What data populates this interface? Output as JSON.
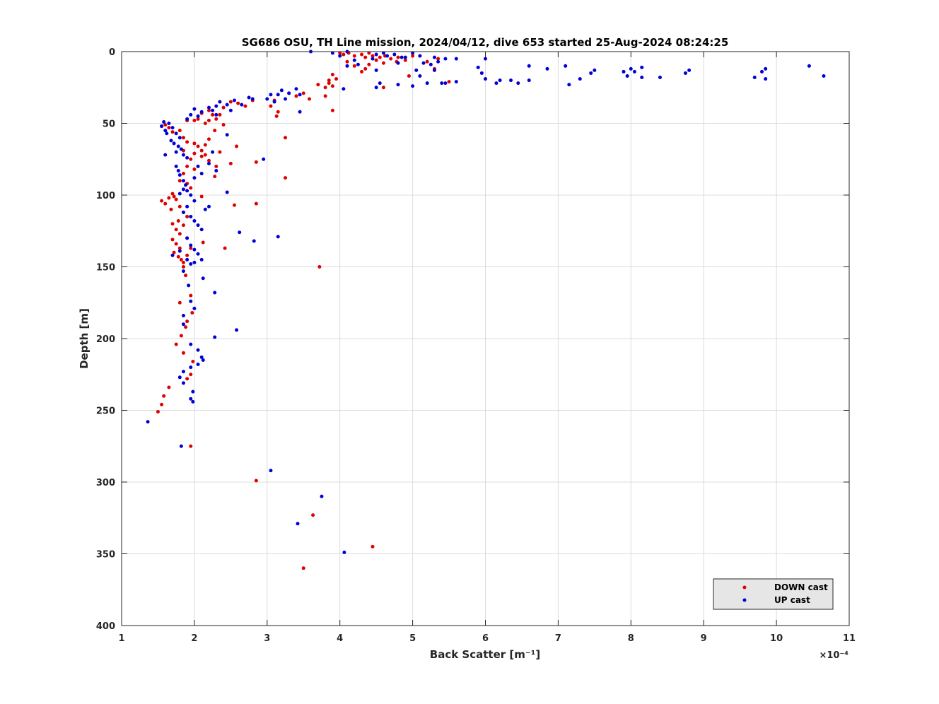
{
  "chart_data": {
    "type": "scatter",
    "title": "SG686 OSU, TH Line mission, 2024/04/12, dive 653 started 25-Aug-2024 08:24:25",
    "xlabel": "Back Scatter [m⁻¹]",
    "ylabel": "Depth [m]",
    "x_exponent_label": "×10⁻⁴",
    "x_multiplier": 0.0001,
    "xlim": [
      1,
      11
    ],
    "ylim": [
      0,
      400
    ],
    "y_reversed": true,
    "xticks": [
      1,
      2,
      3,
      4,
      5,
      6,
      7,
      8,
      9,
      10,
      11
    ],
    "yticks": [
      0,
      50,
      100,
      150,
      200,
      250,
      300,
      350,
      400
    ],
    "xtick_labels": [
      "1",
      "2",
      "3",
      "4",
      "5",
      "6",
      "7",
      "8",
      "9",
      "10",
      "11"
    ],
    "ytick_labels": [
      "0",
      "50",
      "100",
      "150",
      "200",
      "250",
      "300",
      "350",
      "400"
    ],
    "grid": true,
    "legend_position": "bottom-right",
    "series": [
      {
        "name": "DOWN cast",
        "color": "#e00000",
        "points": [
          [
            4.0,
            1
          ],
          [
            4.05,
            2
          ],
          [
            4.12,
            1
          ],
          [
            4.2,
            3
          ],
          [
            4.3,
            2
          ],
          [
            4.35,
            4
          ],
          [
            4.4,
            1
          ],
          [
            4.45,
            3
          ],
          [
            4.5,
            6
          ],
          [
            4.55,
            4
          ],
          [
            4.6,
            8
          ],
          [
            4.62,
            3
          ],
          [
            4.7,
            5
          ],
          [
            4.78,
            7
          ],
          [
            4.8,
            4
          ],
          [
            4.9,
            6
          ],
          [
            5.0,
            3
          ],
          [
            5.2,
            7
          ],
          [
            5.3,
            12
          ],
          [
            5.35,
            5
          ],
          [
            4.1,
            7
          ],
          [
            4.2,
            10
          ],
          [
            4.3,
            14
          ],
          [
            4.35,
            12
          ],
          [
            4.4,
            9
          ],
          [
            4.6,
            25
          ],
          [
            4.95,
            17
          ],
          [
            5.5,
            21
          ],
          [
            3.95,
            19
          ],
          [
            3.9,
            16
          ],
          [
            3.85,
            22
          ],
          [
            3.8,
            25
          ],
          [
            3.85,
            20
          ],
          [
            3.9,
            24
          ],
          [
            3.7,
            23
          ],
          [
            3.8,
            31
          ],
          [
            3.9,
            41
          ],
          [
            3.5,
            29
          ],
          [
            3.58,
            33
          ],
          [
            3.4,
            31
          ],
          [
            3.3,
            29
          ],
          [
            3.1,
            34
          ],
          [
            3.05,
            38
          ],
          [
            3.15,
            42
          ],
          [
            3.13,
            45
          ],
          [
            3.25,
            60
          ],
          [
            2.8,
            34
          ],
          [
            2.7,
            38
          ],
          [
            2.6,
            36
          ],
          [
            2.5,
            35
          ],
          [
            2.4,
            39
          ],
          [
            2.35,
            44
          ],
          [
            2.3,
            47
          ],
          [
            2.25,
            44
          ],
          [
            2.2,
            48
          ],
          [
            2.15,
            50
          ],
          [
            2.1,
            43
          ],
          [
            2.05,
            47
          ],
          [
            2.0,
            48
          ],
          [
            2.28,
            55
          ],
          [
            2.4,
            51
          ],
          [
            2.2,
            41
          ],
          [
            1.6,
            51
          ],
          [
            1.65,
            53
          ],
          [
            1.7,
            56
          ],
          [
            1.8,
            55
          ],
          [
            1.85,
            60
          ],
          [
            1.9,
            48
          ],
          [
            1.55,
            52
          ],
          [
            1.9,
            63
          ],
          [
            2.0,
            64
          ],
          [
            2.05,
            66
          ],
          [
            2.1,
            69
          ],
          [
            2.15,
            72
          ],
          [
            1.95,
            75
          ],
          [
            2.0,
            71
          ],
          [
            2.1,
            73
          ],
          [
            2.2,
            76
          ],
          [
            2.3,
            80
          ],
          [
            2.5,
            78
          ],
          [
            2.58,
            66
          ],
          [
            2.85,
            77
          ],
          [
            2.35,
            70
          ],
          [
            1.85,
            69
          ],
          [
            2.15,
            65
          ],
          [
            2.2,
            61
          ],
          [
            1.85,
            85
          ],
          [
            1.9,
            80
          ],
          [
            2.0,
            82
          ],
          [
            1.8,
            90
          ],
          [
            1.95,
            95
          ],
          [
            1.9,
            92
          ],
          [
            3.25,
            88
          ],
          [
            2.28,
            87
          ],
          [
            1.55,
            104
          ],
          [
            1.6,
            106
          ],
          [
            1.65,
            102
          ],
          [
            1.7,
            99
          ],
          [
            1.75,
            103
          ],
          [
            1.8,
            108
          ],
          [
            1.68,
            110
          ],
          [
            1.72,
            101
          ],
          [
            1.85,
            112
          ],
          [
            2.1,
            101
          ],
          [
            2.55,
            107
          ],
          [
            2.85,
            106
          ],
          [
            1.9,
            115
          ],
          [
            1.78,
            118
          ],
          [
            1.7,
            120
          ],
          [
            1.75,
            124
          ],
          [
            1.8,
            127
          ],
          [
            1.85,
            121
          ],
          [
            1.9,
            130
          ],
          [
            1.7,
            131
          ],
          [
            1.75,
            134
          ],
          [
            1.8,
            137
          ],
          [
            1.72,
            140
          ],
          [
            1.78,
            143
          ],
          [
            1.82,
            145
          ],
          [
            1.85,
            147
          ],
          [
            1.9,
            142
          ],
          [
            1.95,
            137
          ],
          [
            2.12,
            133
          ],
          [
            2.42,
            137
          ],
          [
            1.85,
            150
          ],
          [
            1.88,
            156
          ],
          [
            3.72,
            150
          ],
          [
            1.8,
            175
          ],
          [
            1.95,
            170
          ],
          [
            1.9,
            188
          ],
          [
            1.88,
            192
          ],
          [
            1.97,
            182
          ],
          [
            1.75,
            204
          ],
          [
            1.82,
            198
          ],
          [
            1.85,
            210
          ],
          [
            1.98,
            216
          ],
          [
            1.95,
            225
          ],
          [
            1.9,
            228
          ],
          [
            1.65,
            234
          ],
          [
            1.58,
            240
          ],
          [
            1.55,
            246
          ],
          [
            1.5,
            251
          ],
          [
            1.95,
            275
          ],
          [
            2.85,
            299
          ],
          [
            3.63,
            323
          ],
          [
            4.45,
            345
          ],
          [
            3.5,
            360
          ]
        ]
      },
      {
        "name": "UP cast",
        "color": "#0000d8",
        "points": [
          [
            3.6,
            0
          ],
          [
            3.9,
            1
          ],
          [
            4.0,
            3
          ],
          [
            4.1,
            0
          ],
          [
            4.2,
            6
          ],
          [
            4.45,
            5
          ],
          [
            4.5,
            2
          ],
          [
            4.6,
            1
          ],
          [
            4.65,
            3
          ],
          [
            4.75,
            2
          ],
          [
            4.85,
            4
          ],
          [
            4.9,
            4
          ],
          [
            5.0,
            1
          ],
          [
            5.1,
            3
          ],
          [
            5.15,
            8
          ],
          [
            5.3,
            4
          ],
          [
            5.35,
            7
          ],
          [
            5.45,
            5
          ],
          [
            5.6,
            5
          ],
          [
            6.0,
            5
          ],
          [
            4.1,
            10
          ],
          [
            4.25,
            9
          ],
          [
            4.5,
            13
          ],
          [
            4.8,
            8
          ],
          [
            5.05,
            13
          ],
          [
            5.25,
            9
          ],
          [
            5.3,
            13
          ],
          [
            5.1,
            17
          ],
          [
            5.2,
            22
          ],
          [
            4.5,
            25
          ],
          [
            4.55,
            22
          ],
          [
            4.8,
            23
          ],
          [
            4.05,
            26
          ],
          [
            5.0,
            24
          ],
          [
            5.4,
            22
          ],
          [
            5.45,
            22
          ],
          [
            5.6,
            21
          ],
          [
            5.9,
            11
          ],
          [
            5.95,
            15
          ],
          [
            6.0,
            19
          ],
          [
            6.15,
            22
          ],
          [
            6.2,
            20
          ],
          [
            6.35,
            20
          ],
          [
            6.45,
            22
          ],
          [
            6.6,
            20
          ],
          [
            6.6,
            10
          ],
          [
            6.85,
            12
          ],
          [
            7.1,
            10
          ],
          [
            7.15,
            23
          ],
          [
            7.3,
            19
          ],
          [
            7.45,
            15
          ],
          [
            7.5,
            13
          ],
          [
            7.9,
            14
          ],
          [
            7.95,
            17
          ],
          [
            8.0,
            12
          ],
          [
            8.05,
            14
          ],
          [
            8.15,
            11
          ],
          [
            8.15,
            18
          ],
          [
            8.4,
            18
          ],
          [
            8.75,
            15
          ],
          [
            8.8,
            13
          ],
          [
            9.7,
            18
          ],
          [
            9.8,
            14
          ],
          [
            9.85,
            12
          ],
          [
            9.85,
            19
          ],
          [
            10.45,
            10
          ],
          [
            10.65,
            17
          ],
          [
            3.45,
            30
          ],
          [
            3.3,
            29
          ],
          [
            3.2,
            27
          ],
          [
            3.05,
            30
          ],
          [
            3.0,
            33
          ],
          [
            3.1,
            35
          ],
          [
            3.25,
            33
          ],
          [
            3.4,
            26
          ],
          [
            3.45,
            42
          ],
          [
            3.15,
            30
          ],
          [
            2.8,
            33
          ],
          [
            2.75,
            32
          ],
          [
            2.65,
            37
          ],
          [
            2.55,
            34
          ],
          [
            2.45,
            37
          ],
          [
            2.35,
            35
          ],
          [
            2.3,
            38
          ],
          [
            2.25,
            41
          ],
          [
            2.2,
            39
          ],
          [
            2.1,
            42
          ],
          [
            2.05,
            45
          ],
          [
            2.0,
            40
          ],
          [
            1.95,
            44
          ],
          [
            1.9,
            47
          ],
          [
            2.3,
            44
          ],
          [
            2.5,
            41
          ],
          [
            1.55,
            52
          ],
          [
            1.58,
            49
          ],
          [
            1.6,
            55
          ],
          [
            1.62,
            57
          ],
          [
            1.65,
            50
          ],
          [
            1.7,
            53
          ],
          [
            1.75,
            57
          ],
          [
            1.8,
            60
          ],
          [
            1.68,
            62
          ],
          [
            1.72,
            64
          ],
          [
            1.78,
            66
          ],
          [
            1.82,
            68
          ],
          [
            1.85,
            72
          ],
          [
            1.75,
            70
          ],
          [
            1.6,
            72
          ],
          [
            1.9,
            74
          ],
          [
            2.45,
            58
          ],
          [
            2.95,
            75
          ],
          [
            2.25,
            70
          ],
          [
            2.2,
            78
          ],
          [
            2.3,
            83
          ],
          [
            2.1,
            85
          ],
          [
            2.05,
            80
          ],
          [
            2.0,
            88
          ],
          [
            1.75,
            80
          ],
          [
            1.78,
            83
          ],
          [
            1.8,
            86
          ],
          [
            1.85,
            90
          ],
          [
            1.88,
            93
          ],
          [
            1.9,
            97
          ],
          [
            1.8,
            99
          ],
          [
            1.85,
            96
          ],
          [
            1.95,
            100
          ],
          [
            2.0,
            104
          ],
          [
            1.9,
            108
          ],
          [
            1.85,
            112
          ],
          [
            1.95,
            115
          ],
          [
            2.0,
            118
          ],
          [
            2.05,
            121
          ],
          [
            2.1,
            124
          ],
          [
            2.15,
            110
          ],
          [
            2.2,
            108
          ],
          [
            2.45,
            98
          ],
          [
            2.62,
            126
          ],
          [
            2.82,
            132
          ],
          [
            3.15,
            129
          ],
          [
            1.9,
            130
          ],
          [
            1.95,
            135
          ],
          [
            2.0,
            138
          ],
          [
            2.05,
            141
          ],
          [
            1.9,
            145
          ],
          [
            1.95,
            148
          ],
          [
            2.0,
            147
          ],
          [
            2.1,
            145
          ],
          [
            1.7,
            142
          ],
          [
            1.8,
            139
          ],
          [
            1.85,
            153
          ],
          [
            1.92,
            163
          ],
          [
            2.12,
            158
          ],
          [
            2.28,
            168
          ],
          [
            1.95,
            174
          ],
          [
            2.0,
            179
          ],
          [
            1.85,
            184
          ],
          [
            1.85,
            190
          ],
          [
            2.58,
            194
          ],
          [
            2.28,
            199
          ],
          [
            1.95,
            204
          ],
          [
            2.05,
            208
          ],
          [
            2.1,
            213
          ],
          [
            2.12,
            215
          ],
          [
            2.05,
            218
          ],
          [
            1.95,
            220
          ],
          [
            1.85,
            223
          ],
          [
            1.8,
            227
          ],
          [
            1.85,
            231
          ],
          [
            1.98,
            237
          ],
          [
            1.95,
            242
          ],
          [
            1.98,
            244
          ],
          [
            1.36,
            258
          ],
          [
            1.82,
            275
          ],
          [
            3.05,
            292
          ],
          [
            3.75,
            310
          ],
          [
            3.42,
            329
          ],
          [
            4.06,
            349
          ]
        ]
      }
    ]
  }
}
